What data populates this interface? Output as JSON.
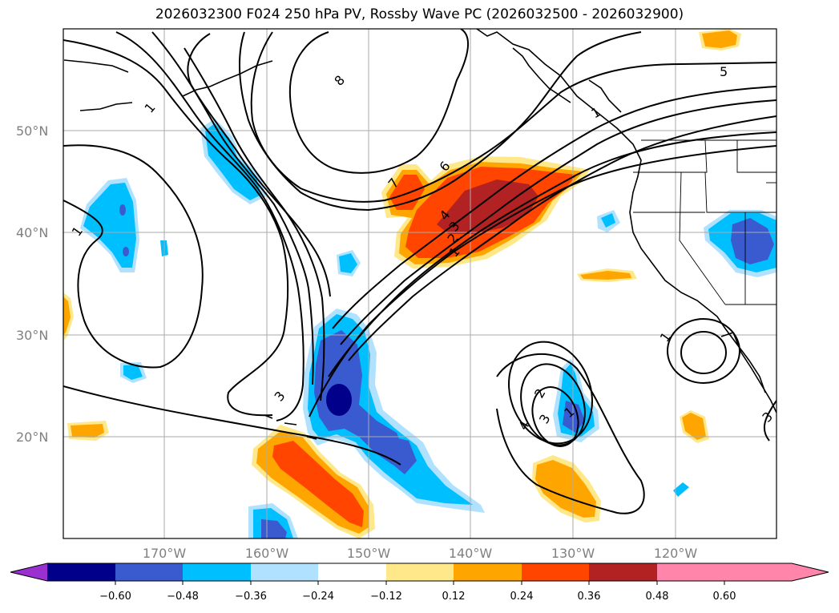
{
  "title": "2026032300 F024 250 hPa PV, Rossby Wave PC (2026032500 - 2026032900)",
  "map": {
    "lat_labels": [
      "50°N",
      "40°N",
      "30°N",
      "20°N"
    ],
    "lon_labels": [
      "170°W",
      "160°W",
      "150°W",
      "140°W",
      "130°W",
      "120°W"
    ],
    "contour_labels": [
      "1",
      "8",
      "5",
      "6",
      "7",
      "4",
      "3",
      "2",
      "1",
      "1",
      "1",
      "3",
      "2",
      "3",
      "1",
      "4",
      "1",
      "3"
    ]
  },
  "colorbar": {
    "ticks": [
      "−0.60",
      "−0.48",
      "−0.36",
      "−0.24",
      "−0.12",
      "0.12",
      "0.24",
      "0.36",
      "0.48",
      "0.60"
    ],
    "colors": [
      "#9b30d0",
      "#00008b",
      "#3a5bd0",
      "#00bfff",
      "#b0e2ff",
      "#ffffff",
      "#ffe88a",
      "#ffa500",
      "#ff4500",
      "#b22222",
      "#ff85aa"
    ]
  }
}
